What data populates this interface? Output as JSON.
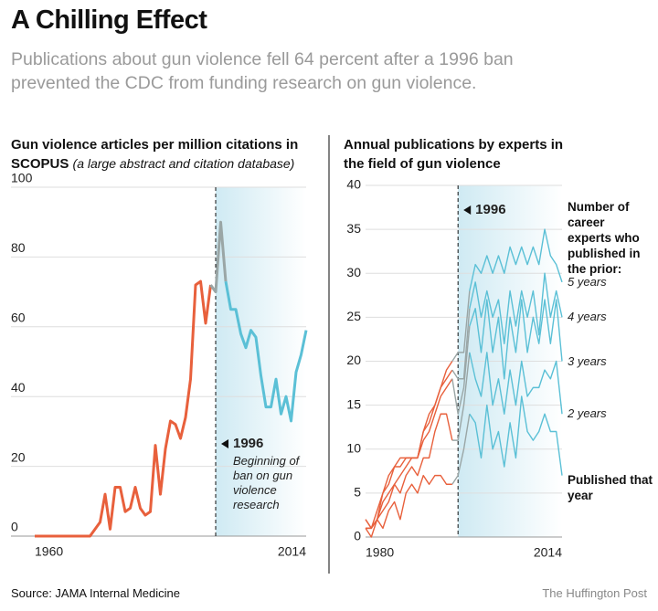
{
  "header": {
    "title": "A Chilling Effect",
    "subtitle": "Publications about gun violence fell 64 percent after a 1996 ban prevented the CDC from funding research on gun violence."
  },
  "chart_data": [
    {
      "type": "line",
      "title": "Gun violence articles per million citations in SCOPUS",
      "title_note": "(a large abstract and citation database)",
      "x": [
        1960,
        1961,
        1962,
        1963,
        1964,
        1965,
        1966,
        1967,
        1968,
        1969,
        1970,
        1971,
        1972,
        1973,
        1974,
        1975,
        1976,
        1977,
        1978,
        1979,
        1980,
        1981,
        1982,
        1983,
        1984,
        1985,
        1986,
        1987,
        1988,
        1989,
        1990,
        1991,
        1992,
        1993,
        1994,
        1995,
        1996,
        1997,
        1998,
        1999,
        2000,
        2001,
        2002,
        2003,
        2004,
        2005,
        2006,
        2007,
        2008,
        2009,
        2010,
        2011,
        2012,
        2013,
        2014
      ],
      "series": [
        {
          "values": [
            0,
            0,
            0,
            0,
            0,
            0,
            0,
            0,
            0,
            0,
            0,
            0,
            2,
            4,
            12,
            2,
            14,
            14,
            7,
            8,
            14,
            8,
            6,
            7,
            26,
            12,
            25,
            33,
            32,
            28,
            34,
            45,
            72,
            73,
            61,
            72,
            70,
            90,
            73,
            65,
            65,
            58,
            54,
            59,
            57,
            46,
            37,
            37,
            45,
            35,
            40,
            33,
            47,
            52,
            59
          ]
        }
      ],
      "colors": {
        "before": "#e8603c",
        "transition": "#9aa6a6",
        "after": "#5bc0d6"
      },
      "xlim": [
        1960,
        2014
      ],
      "xticks": [
        1960,
        2014
      ],
      "ylim": [
        0,
        100
      ],
      "yticks": [
        0,
        20,
        40,
        60,
        80,
        100
      ],
      "grid": true,
      "annotation": {
        "x": 1996,
        "text": "Beginning of ban on gun violence research"
      }
    },
    {
      "type": "line",
      "title": "Annual publications by experts in the field of gun violence",
      "x": [
        1980,
        1981,
        1982,
        1983,
        1984,
        1985,
        1986,
        1987,
        1988,
        1989,
        1990,
        1991,
        1992,
        1993,
        1994,
        1995,
        1996,
        1997,
        1998,
        1999,
        2000,
        2001,
        2002,
        2003,
        2004,
        2005,
        2006,
        2007,
        2008,
        2009,
        2010,
        2011,
        2012,
        2013,
        2014
      ],
      "legend_title": "Number of career experts who published in the prior:",
      "series": [
        {
          "name": "5 years",
          "values": [
            2,
            1,
            3,
            5,
            7,
            8,
            9,
            9,
            9,
            9,
            12,
            14,
            15,
            17,
            19,
            20,
            21,
            21,
            28,
            31,
            30,
            32,
            30,
            32,
            30,
            33,
            31,
            33,
            31,
            33,
            31,
            35,
            32,
            31,
            29
          ]
        },
        {
          "name": "4 years",
          "values": [
            2,
            1,
            2,
            5,
            6,
            8,
            8,
            9,
            9,
            9,
            12,
            13,
            15,
            17,
            18,
            19,
            18,
            18,
            26,
            29,
            25,
            28,
            25,
            27,
            22,
            28,
            24,
            28,
            25,
            28,
            23,
            30,
            25,
            28,
            25
          ]
        },
        {
          "name": "3 years",
          "values": [
            1,
            1,
            2,
            4,
            5,
            6,
            7,
            8,
            9,
            9,
            11,
            12,
            14,
            16,
            17,
            18,
            14,
            17,
            24,
            26,
            21,
            27,
            21,
            25,
            18,
            25,
            21,
            27,
            21,
            25,
            22,
            27,
            22,
            27,
            20
          ]
        },
        {
          "name": "2 years",
          "values": [
            1,
            1,
            2,
            3,
            4,
            6,
            5,
            7,
            8,
            7,
            9,
            9,
            12,
            14,
            14,
            11,
            11,
            15,
            21,
            18,
            16,
            21,
            15,
            18,
            14,
            19,
            15,
            20,
            16,
            17,
            17,
            19,
            18,
            20,
            14
          ]
        },
        {
          "name": "Published that year",
          "values": [
            1,
            0,
            2,
            1,
            3,
            4,
            2,
            5,
            6,
            5,
            7,
            6,
            7,
            7,
            6,
            6,
            7,
            10,
            14,
            13,
            9,
            15,
            10,
            12,
            8,
            13,
            9,
            16,
            12,
            11,
            12,
            14,
            12,
            12,
            7
          ]
        }
      ],
      "colors": {
        "before": "#e8603c",
        "transition": "#9aa6a6",
        "after": "#5bc0d6"
      },
      "xlim": [
        1980,
        2014
      ],
      "xticks": [
        1980,
        2014
      ],
      "ylim": [
        0,
        40
      ],
      "yticks": [
        0,
        5,
        10,
        15,
        20,
        25,
        30,
        35,
        40
      ],
      "grid": true,
      "annotation": {
        "x": 1996
      }
    }
  ],
  "footer": {
    "source": "Source: JAMA Internal Medicine",
    "credit": "The Huffington Post"
  }
}
